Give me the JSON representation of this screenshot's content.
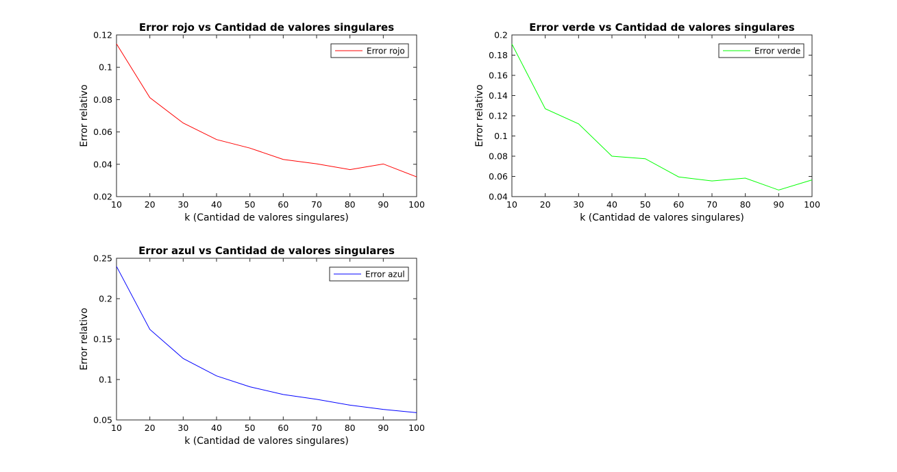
{
  "chart_data": [
    {
      "type": "line",
      "title": "Error rojo vs Cantidad de valores singulares",
      "xlabel": "k (Cantidad de valores singulares)",
      "ylabel": "Error relativo",
      "x": [
        10,
        20,
        30,
        40,
        50,
        60,
        70,
        80,
        90,
        100
      ],
      "xlim": [
        10,
        100
      ],
      "xticks": [
        10,
        20,
        30,
        40,
        50,
        60,
        70,
        80,
        90,
        100
      ],
      "ylim": [
        0.02,
        0.12
      ],
      "yticks": [
        0.02,
        0.04,
        0.06,
        0.08,
        0.1,
        0.12
      ],
      "series": [
        {
          "name": "Error rojo",
          "color": "#ff0000",
          "values": [
            0.1145,
            0.0812,
            0.0655,
            0.0553,
            0.05,
            0.043,
            0.0403,
            0.0367,
            0.0402,
            0.0322
          ]
        }
      ],
      "legend": "top-right",
      "grid": false
    },
    {
      "type": "line",
      "title": "Error verde vs Cantidad de valores singulares",
      "xlabel": "k (Cantidad de valores singulares)",
      "ylabel": "Error relativo",
      "x": [
        10,
        20,
        30,
        40,
        50,
        60,
        70,
        80,
        90,
        100
      ],
      "xlim": [
        10,
        100
      ],
      "xticks": [
        10,
        20,
        30,
        40,
        50,
        60,
        70,
        80,
        90,
        100
      ],
      "ylim": [
        0.04,
        0.2
      ],
      "yticks": [
        0.04,
        0.06,
        0.08,
        0.1,
        0.12,
        0.14,
        0.16,
        0.18,
        0.2
      ],
      "series": [
        {
          "name": "Error verde",
          "color": "#00ff00",
          "values": [
            0.191,
            0.127,
            0.112,
            0.08,
            0.0775,
            0.0595,
            0.0555,
            0.0583,
            0.0465,
            0.0565
          ]
        }
      ],
      "legend": "top-right",
      "grid": false
    },
    {
      "type": "line",
      "title": "Error azul vs Cantidad de valores singulares",
      "xlabel": "k (Cantidad de valores singulares)",
      "ylabel": "Error relativo",
      "x": [
        10,
        20,
        30,
        40,
        50,
        60,
        70,
        80,
        90,
        100
      ],
      "xlim": [
        10,
        100
      ],
      "xticks": [
        10,
        20,
        30,
        40,
        50,
        60,
        70,
        80,
        90,
        100
      ],
      "ylim": [
        0.05,
        0.25
      ],
      "yticks": [
        0.05,
        0.1,
        0.15,
        0.2,
        0.25
      ],
      "series": [
        {
          "name": "Error azul",
          "color": "#0000ff",
          "values": [
            0.24,
            0.162,
            0.126,
            0.1045,
            0.091,
            0.0815,
            0.0755,
            0.0683,
            0.063,
            0.059
          ]
        }
      ],
      "legend": "top-right",
      "grid": false
    }
  ]
}
